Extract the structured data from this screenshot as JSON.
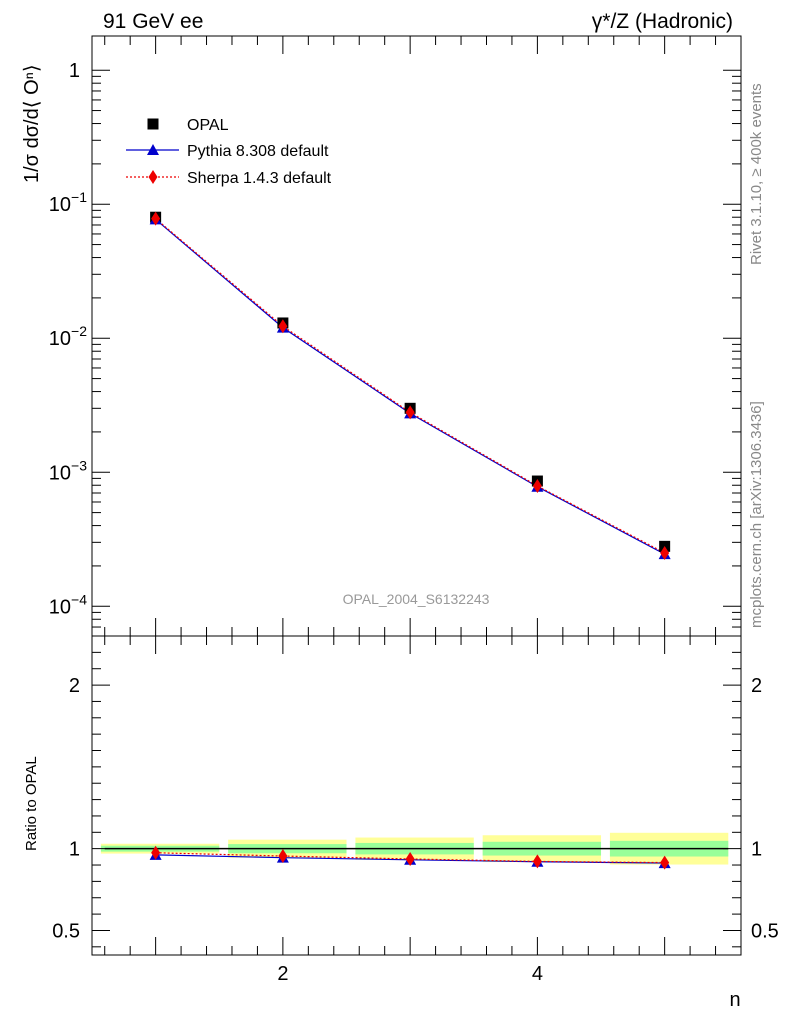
{
  "header": {
    "left": "91 GeV ee",
    "right": "γ*/Z (Hadronic)"
  },
  "side_labels": {
    "rivet": "Rivet 3.1.10, ≥ 400k events",
    "mcplots": "mcplots.cern.ch [arXiv:1306.3436]"
  },
  "watermark": "OPAL_2004_S6132243",
  "chart_data": [
    {
      "type": "scatter",
      "panel": "main",
      "title": "91 GeV ee",
      "ylabel": "1/σ dσ/d⟨ Oⁿ⟩",
      "xlabel": "n",
      "yscale": "log",
      "xlim": [
        0.5,
        5.6
      ],
      "ylim": [
        6e-05,
        1.8
      ],
      "ytick_labels": [
        {
          "base": "1",
          "exp": ""
        },
        {
          "base": "10",
          "exp": "−1"
        },
        {
          "base": "10",
          "exp": "−2"
        },
        {
          "base": "10",
          "exp": "−3"
        },
        {
          "base": "10",
          "exp": "−4"
        }
      ],
      "ytick_values": [
        1,
        0.1,
        0.01,
        0.001,
        0.0001
      ],
      "x": [
        1,
        2,
        3,
        4,
        5
      ],
      "series": [
        {
          "name": "OPAL",
          "values": [
            0.08,
            0.013,
            0.003,
            0.00086,
            0.00028
          ],
          "color": "#000000",
          "marker": "square"
        },
        {
          "name": "Pythia 8.308 default",
          "values": [
            0.077,
            0.012,
            0.00275,
            0.00078,
            0.000245
          ],
          "color": "#0000cc",
          "marker": "triangle"
        },
        {
          "name": "Sherpa 1.4.3 default",
          "values": [
            0.078,
            0.0123,
            0.0028,
            0.00079,
            0.00025
          ],
          "color": "#ee0000",
          "marker": "diamond",
          "linestyle": "dotted"
        }
      ],
      "legend": "top-left"
    },
    {
      "type": "line",
      "panel": "ratio",
      "ylabel": "Ratio to OPAL",
      "xlabel": "n",
      "xlim": [
        0.5,
        5.6
      ],
      "ylim": [
        0.35,
        2.3
      ],
      "ytick_labels": [
        "0.5",
        "1",
        "2"
      ],
      "ytick_values": [
        0.5,
        1,
        2
      ],
      "xtick_labels": [
        "2",
        "4"
      ],
      "xtick_values": [
        2,
        4
      ],
      "x": [
        1,
        2,
        3,
        4,
        5
      ],
      "bands": {
        "bins": [
          [
            0.5,
            1.5
          ],
          [
            1.5,
            2.5
          ],
          [
            2.5,
            3.5
          ],
          [
            3.5,
            4.5
          ],
          [
            4.5,
            5.5
          ]
        ],
        "green_halfwidth": [
          0.018,
          0.028,
          0.035,
          0.042,
          0.048
        ],
        "yellow_halfwidth": [
          0.03,
          0.055,
          0.068,
          0.082,
          0.097
        ],
        "green_color": "#99ff99",
        "yellow_color": "#ffff99"
      },
      "series": [
        {
          "name": "Pythia 8.308 default",
          "values": [
            0.962,
            0.945,
            0.932,
            0.92,
            0.912
          ],
          "color": "#0000cc",
          "marker": "triangle"
        },
        {
          "name": "Sherpa 1.4.3 default",
          "values": [
            0.975,
            0.955,
            0.937,
            0.922,
            0.915
          ],
          "color": "#ee0000",
          "marker": "diamond",
          "linestyle": "dotted"
        }
      ]
    }
  ]
}
